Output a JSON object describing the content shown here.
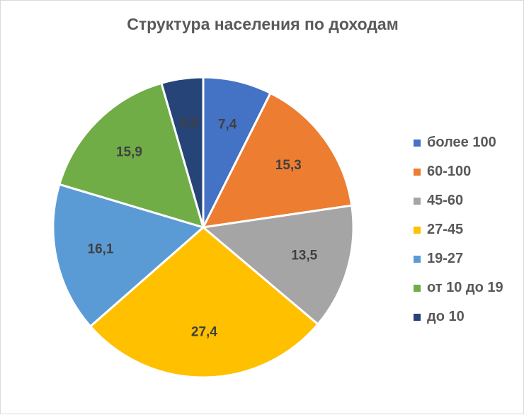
{
  "chart_data": {
    "type": "pie",
    "title": "Структура населения по доходам",
    "categories": [
      "более 100",
      "60-100",
      "45-60",
      "27-45",
      "19-27",
      "от 10 до 19",
      "до 10"
    ],
    "values": [
      7.4,
      15.3,
      13.5,
      27.4,
      16.1,
      15.9,
      4.5
    ],
    "value_labels": [
      "7,4",
      "15,3",
      "13,5",
      "27,4",
      "16,1",
      "15,9",
      "4,5"
    ],
    "colors": [
      "#4472C4",
      "#ED7D31",
      "#A5A5A5",
      "#FFC000",
      "#5B9BD5",
      "#70AD47",
      "#264478"
    ],
    "legend": "right",
    "start_angle": "12 o'clock, clockwise"
  }
}
